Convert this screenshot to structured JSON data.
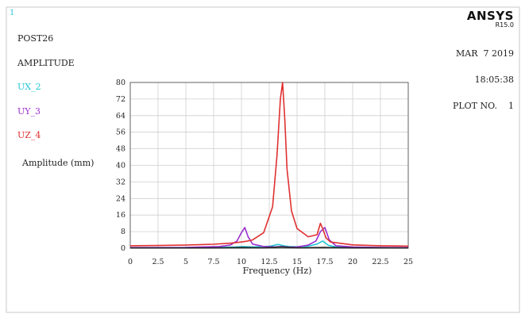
{
  "window_index": "1",
  "header_left": {
    "program": "POST26",
    "quantity": "AMPLITUDE",
    "legend": [
      {
        "label": "UX_2",
        "color": "#24c6d6"
      },
      {
        "label": "UY_3",
        "color": "#9b2fd0"
      },
      {
        "label": "UZ_4",
        "color": "#e03030"
      }
    ]
  },
  "header_right": {
    "brand": "ANSYS",
    "release": "R15.0",
    "date": "MAR  7 2019",
    "time": "18:05:38",
    "plot_no": "PLOT NO.    1"
  },
  "chart_data": {
    "type": "line",
    "title": "",
    "xlabel": "Frequency (Hz)",
    "ylabel": "Amplitude (mm)",
    "xlim": [
      0,
      25
    ],
    "ylim": [
      0,
      80
    ],
    "grid": true,
    "x_ticks": [
      0,
      2.5,
      5,
      7.5,
      10,
      12.5,
      15,
      17.5,
      20,
      22.5,
      25
    ],
    "x_tick_labels": [
      "0",
      "2.5",
      "5",
      "7.5",
      "10",
      "12.5",
      "15",
      "17.5",
      "20",
      "22.5",
      "25"
    ],
    "y_ticks": [
      0,
      8,
      16,
      24,
      32,
      40,
      48,
      56,
      64,
      72,
      80
    ],
    "y_tick_labels": [
      "0",
      "8",
      "16",
      "24",
      "32",
      "40",
      "48",
      "56",
      "64",
      "72",
      "80"
    ],
    "series": [
      {
        "name": "UX_2",
        "color": "#24c6d6",
        "x": [
          0,
          5,
          8,
          9.5,
          10.2,
          11,
          12.5,
          13.3,
          13.8,
          14.3,
          15,
          16,
          16.8,
          17.3,
          17.8,
          18.5,
          20,
          22.5,
          25
        ],
        "y": [
          0.2,
          0.3,
          0.4,
          0.6,
          0.8,
          0.6,
          0.9,
          1.8,
          1.2,
          0.8,
          0.7,
          1.0,
          2.0,
          3.5,
          1.4,
          0.6,
          0.4,
          0.3,
          0.2
        ]
      },
      {
        "name": "UY_3",
        "color": "#9b2fd0",
        "x": [
          0,
          5,
          8,
          9,
          9.6,
          10.0,
          10.3,
          10.6,
          11,
          12,
          13,
          13.6,
          14.3,
          15,
          16,
          16.7,
          17.1,
          17.5,
          17.9,
          18.5,
          20,
          22.5,
          25
        ],
        "y": [
          0.3,
          0.4,
          0.8,
          1.5,
          3.5,
          7.5,
          10.0,
          5.5,
          2.0,
          0.8,
          0.6,
          0.8,
          0.5,
          0.6,
          1.5,
          3.5,
          8.0,
          10.0,
          4.0,
          1.2,
          0.6,
          0.4,
          0.3
        ]
      },
      {
        "name": "UZ_4",
        "color": "#e03030",
        "x": [
          0,
          2.5,
          5,
          7.5,
          9,
          10,
          10.5,
          11,
          12,
          12.8,
          13.2,
          13.5,
          13.7,
          13.9,
          14.1,
          14.5,
          15,
          16,
          16.8,
          17.1,
          17.3,
          17.6,
          18,
          20,
          22.5,
          25
        ],
        "y": [
          1.2,
          1.3,
          1.5,
          1.9,
          2.4,
          3.0,
          3.4,
          4.0,
          7.5,
          20.0,
          45.0,
          72.0,
          80.0,
          62.0,
          38.0,
          18.0,
          9.5,
          5.5,
          6.5,
          12.0,
          9.5,
          5.0,
          3.0,
          1.6,
          1.2,
          1.0
        ]
      },
      {
        "name": "",
        "color": "#222222",
        "x": [
          0,
          5,
          8,
          10,
          12,
          13.6,
          15,
          17.3,
          20,
          25
        ],
        "y": [
          0.1,
          0.1,
          0.15,
          0.3,
          0.2,
          0.6,
          0.2,
          0.4,
          0.15,
          0.1
        ]
      }
    ]
  }
}
